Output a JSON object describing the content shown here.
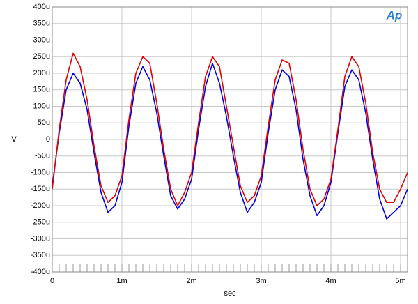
{
  "chart_data": {
    "type": "line",
    "logo": "Ap",
    "x_label": "sec",
    "y_label": "V",
    "grid": true,
    "xlim": [
      0,
      0.0051
    ],
    "ylim": [
      -0.0004,
      0.0004
    ],
    "xticks": [
      0,
      {
        "value": 0.001,
        "label": "1m"
      },
      {
        "value": 0.002,
        "label": "2m"
      },
      {
        "value": 0.003,
        "label": "3m"
      },
      {
        "value": 0.004,
        "label": "4m"
      },
      {
        "value": 0.005,
        "label": "5m"
      }
    ],
    "yticks": [
      {
        "value": -0.0004,
        "label": "-400u"
      },
      {
        "value": -0.00035,
        "label": "-350u"
      },
      {
        "value": -0.0003,
        "label": "-300u"
      },
      {
        "value": -0.00025,
        "label": "-250u"
      },
      {
        "value": -0.0002,
        "label": "-200u"
      },
      {
        "value": -0.00015,
        "label": "-150u"
      },
      {
        "value": -0.0001,
        "label": "-100u"
      },
      {
        "value": -5e-05,
        "label": "-50u"
      },
      0,
      {
        "value": 5e-05,
        "label": "50u"
      },
      {
        "value": 0.0001,
        "label": "100u"
      },
      {
        "value": 0.00015,
        "label": "150u"
      },
      {
        "value": 0.0002,
        "label": "200u"
      },
      {
        "value": 0.00025,
        "label": "250u"
      },
      {
        "value": 0.0003,
        "label": "300u"
      },
      {
        "value": 0.00035,
        "label": "350u"
      },
      {
        "value": 0.0004,
        "label": "400u"
      }
    ],
    "x": [
      0,
      0.0001,
      0.0002,
      0.0003,
      0.0004,
      0.0005,
      0.0006,
      0.0007,
      0.0008,
      0.0009,
      0.001,
      0.0011,
      0.0012,
      0.0013,
      0.0014,
      0.0015,
      0.0016,
      0.0017,
      0.0018,
      0.0019,
      0.002,
      0.0021,
      0.0022,
      0.0023,
      0.0024,
      0.0025,
      0.0026,
      0.0027,
      0.0028,
      0.0029,
      0.003,
      0.0031,
      0.0032,
      0.0033,
      0.0034,
      0.0035,
      0.0036,
      0.0037,
      0.0038,
      0.0039,
      0.004,
      0.0041,
      0.0042,
      0.0043,
      0.0044,
      0.0045,
      0.0046,
      0.0047,
      0.0048,
      0.0049,
      0.005,
      0.0051
    ],
    "series": [
      {
        "color": "#0000e0",
        "values": [
          -0.00014,
          2e-05,
          0.00015,
          0.0002,
          0.00017,
          9e-05,
          -4e-05,
          -0.00016,
          -0.00022,
          -0.0002,
          -0.00013,
          4e-05,
          0.00017,
          0.00022,
          0.00018,
          8e-05,
          -5e-05,
          -0.00017,
          -0.00021,
          -0.00018,
          -0.00012,
          3e-05,
          0.00016,
          0.00023,
          0.00017,
          7e-05,
          -5e-05,
          -0.00016,
          -0.00022,
          -0.00019,
          -0.00013,
          2e-05,
          0.00015,
          0.00021,
          0.00019,
          9e-05,
          -6e-05,
          -0.00017,
          -0.00023,
          -0.0002,
          -0.00013,
          2e-05,
          0.00016,
          0.00021,
          0.00018,
          8e-05,
          -6e-05,
          -0.00018,
          -0.00024,
          -0.00022,
          -0.0002,
          -0.00015
        ]
      },
      {
        "color": "#e00000",
        "values": [
          -0.00015,
          3e-05,
          0.00018,
          0.00026,
          0.00022,
          0.00012,
          -2e-05,
          -0.00014,
          -0.00019,
          -0.00017,
          -0.00011,
          6e-05,
          0.0002,
          0.00025,
          0.00023,
          0.00011,
          -3e-05,
          -0.00015,
          -0.0002,
          -0.00016,
          -0.0001,
          5e-05,
          0.00019,
          0.00025,
          0.00022,
          0.0001,
          -2e-05,
          -0.00014,
          -0.00019,
          -0.00017,
          -0.00011,
          4e-05,
          0.00018,
          0.00024,
          0.00023,
          0.00012,
          -3e-05,
          -0.00015,
          -0.0002,
          -0.00018,
          -0.00012,
          3e-05,
          0.00019,
          0.00025,
          0.00022,
          0.00011,
          -4e-05,
          -0.00015,
          -0.00019,
          -0.00019,
          -0.00015,
          -0.0001
        ]
      }
    ]
  }
}
